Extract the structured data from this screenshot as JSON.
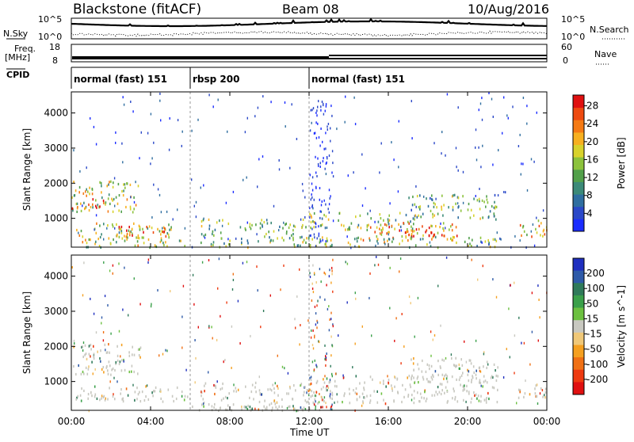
{
  "header": {
    "station": "Blackstone (fitACF)",
    "beam": "Beam 08",
    "date": "10/Aug/2016"
  },
  "panels": {
    "nsky_label": "N.Sky",
    "nsearch_label": "N.Search",
    "noise_ticks": [
      "10^5",
      "10^0"
    ],
    "freq_label_1": "Freq.",
    "freq_label_2": "[MHz]",
    "freq_ticks": [
      "18",
      "8"
    ],
    "nave_label": "Nave",
    "nave_ticks": [
      "60",
      "0"
    ],
    "cpid_label": "CPID",
    "cpid_segments": [
      {
        "label": "normal (fast) 151",
        "start_h": 0,
        "end_h": 6
      },
      {
        "label": "rbsp 200",
        "start_h": 6,
        "end_h": 12
      },
      {
        "label": "normal (fast) 151",
        "start_h": 12,
        "end_h": 24
      }
    ]
  },
  "chart_data": [
    {
      "type": "heatmap",
      "title": "Power",
      "ylabel": "Slant Range [km]",
      "xlabel": "Time UT",
      "x_ticks": [
        "00:00",
        "04:00",
        "08:00",
        "12:00",
        "16:00",
        "20:00",
        "00:00"
      ],
      "xlim_hours": [
        0,
        24
      ],
      "y_ticks": [
        1000,
        2000,
        3000,
        4000
      ],
      "ylim": [
        180,
        4600
      ],
      "colorbar": {
        "label": "Power [dB]",
        "ticks": [
          "4",
          "8",
          "12",
          "16",
          "20",
          "24",
          "28"
        ],
        "range": [
          0,
          30
        ],
        "colors": [
          "#1a2cff",
          "#2a48c8",
          "#2f6ea0",
          "#3c8a78",
          "#52a04a",
          "#8cc23c",
          "#d8d22c",
          "#f7b020",
          "#f57a14",
          "#ee4a10",
          "#e01010"
        ]
      },
      "regions": [
        {
          "t0": 0.0,
          "t1": 3.5,
          "r0": 1200,
          "r1": 2100,
          "level": 0.55
        },
        {
          "t0": 0.0,
          "t1": 1.6,
          "r0": 1300,
          "r1": 1600,
          "level": 0.92
        },
        {
          "t0": 0.2,
          "t1": 5.2,
          "r0": 450,
          "r1": 900,
          "level": 0.5
        },
        {
          "t0": 1.5,
          "t1": 5.0,
          "r0": 500,
          "r1": 800,
          "level": 0.8
        },
        {
          "t0": 0.5,
          "t1": 6.0,
          "r0": 200,
          "r1": 450,
          "level": 0.55
        },
        {
          "t0": 6.5,
          "t1": 8.0,
          "r0": 200,
          "r1": 1000,
          "level": 0.45
        },
        {
          "t0": 8.5,
          "t1": 12.0,
          "r0": 200,
          "r1": 1000,
          "level": 0.45
        },
        {
          "t0": 12.0,
          "t1": 17.5,
          "r0": 700,
          "r1": 1200,
          "level": 0.45
        },
        {
          "t0": 14.5,
          "t1": 19.5,
          "r0": 400,
          "r1": 900,
          "level": 0.7
        },
        {
          "t0": 16.5,
          "t1": 19.0,
          "r0": 500,
          "r1": 800,
          "level": 0.9
        },
        {
          "t0": 12.0,
          "t1": 21.5,
          "r0": 200,
          "r1": 500,
          "level": 0.5
        },
        {
          "t0": 17.0,
          "t1": 21.5,
          "r0": 1000,
          "r1": 1700,
          "level": 0.4
        },
        {
          "t0": 22.5,
          "t1": 24.0,
          "r0": 500,
          "r1": 1000,
          "level": 0.65
        }
      ]
    },
    {
      "type": "heatmap",
      "title": "Velocity",
      "ylabel": "Slant Range [km]",
      "xlabel": "Time UT",
      "x_ticks": [
        "00:00",
        "04:00",
        "08:00",
        "12:00",
        "16:00",
        "20:00",
        "00:00"
      ],
      "xlim_hours": [
        0,
        24
      ],
      "y_ticks": [
        1000,
        2000,
        3000,
        4000
      ],
      "ylim": [
        180,
        4600
      ],
      "colorbar": {
        "label": "Velocity [m s^-1]",
        "ticks": [
          "200",
          "100",
          "50",
          "15",
          "-15",
          "-50",
          "-100",
          "-200"
        ],
        "range": [
          -250,
          250
        ],
        "colors": [
          "#1f2fbf",
          "#2e5aa8",
          "#2f7a5a",
          "#3aa04a",
          "#6cc040",
          "#c8c8c0",
          "#f0c878",
          "#f5a020",
          "#f07014",
          "#ee3a10",
          "#e01010"
        ]
      },
      "regions": [
        {
          "t0": 0.0,
          "t1": 3.5,
          "r0": 1200,
          "r1": 2100,
          "level": 0.5
        },
        {
          "t0": 0.2,
          "t1": 6.0,
          "r0": 450,
          "r1": 900,
          "level": 0.5
        },
        {
          "t0": 6.5,
          "t1": 12.0,
          "r0": 200,
          "r1": 1000,
          "level": 0.5
        },
        {
          "t0": 12.0,
          "t1": 21.5,
          "r0": 400,
          "r1": 1200,
          "level": 0.5
        },
        {
          "t0": 17.0,
          "t1": 21.5,
          "r0": 1000,
          "r1": 1700,
          "level": 0.5
        },
        {
          "t0": 6.0,
          "t1": 12.0,
          "r0": 200,
          "r1": 350,
          "level": 0.3
        },
        {
          "t0": 22.5,
          "t1": 24.0,
          "r0": 500,
          "r1": 1000,
          "level": 0.5
        }
      ]
    }
  ]
}
